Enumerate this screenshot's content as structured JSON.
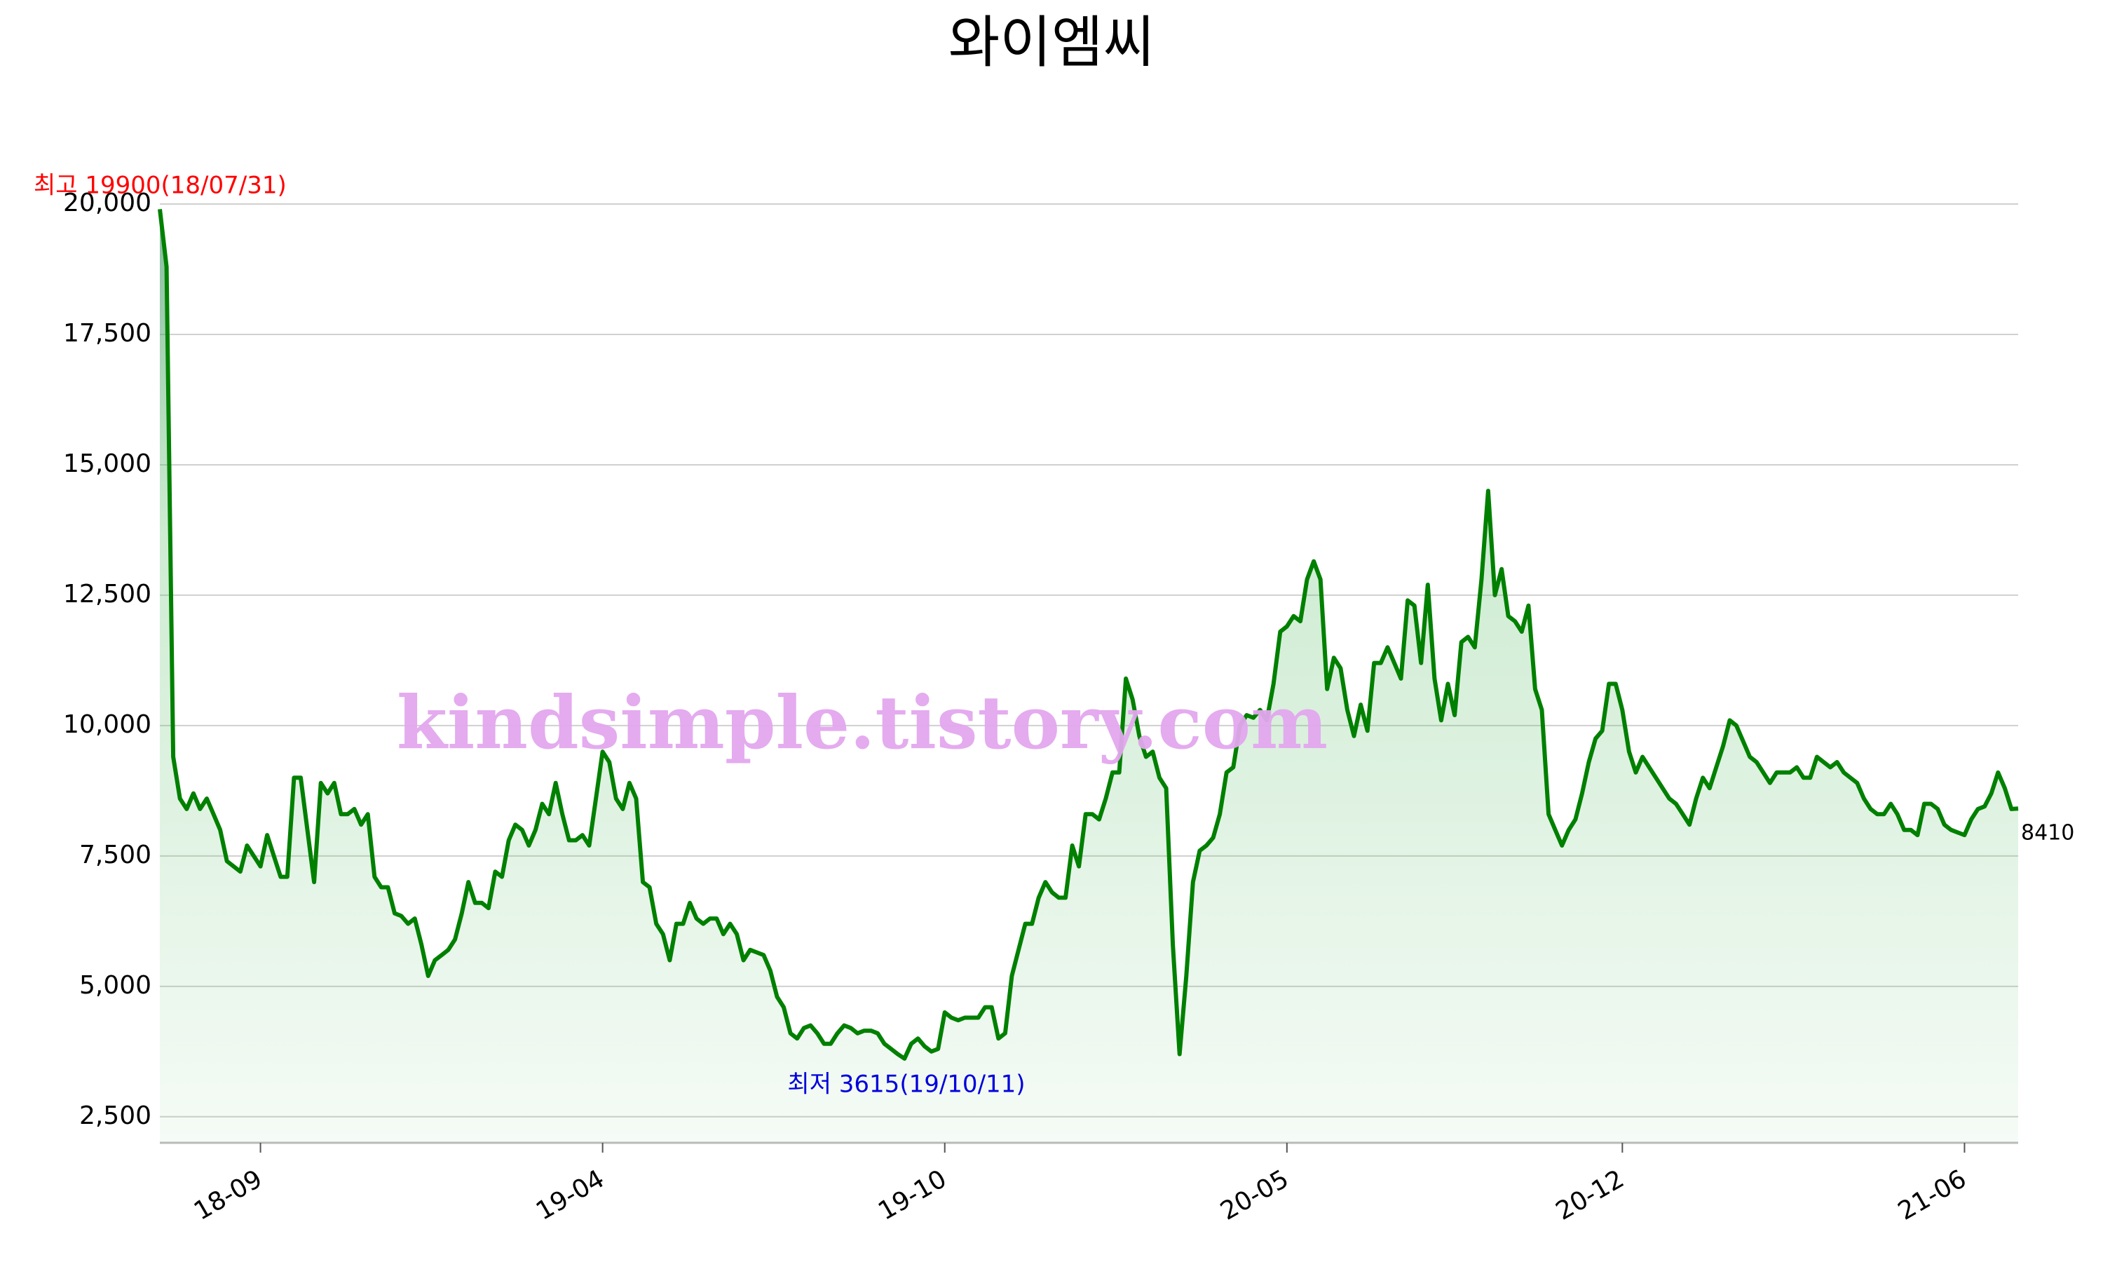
{
  "chart_data": {
    "type": "area-line",
    "title": "와이엠씨",
    "watermark": "kindsimple.tistory.com",
    "annotations": {
      "max": "최고 19900(18/07/31)",
      "min": "최저 3615(19/10/11)"
    },
    "color": "#008000",
    "categories": [
      null,
      null,
      null,
      null,
      null,
      null,
      null,
      null,
      null,
      null,
      null,
      null,
      null,
      null,
      null,
      "18-09",
      null,
      null,
      null,
      null,
      null,
      null,
      null,
      null,
      null,
      null,
      null,
      null,
      null,
      null,
      null,
      null,
      null,
      null,
      null,
      null,
      null,
      null,
      null,
      null,
      null,
      null,
      null,
      null,
      null,
      null,
      null,
      null,
      null,
      null,
      null,
      null,
      null,
      null,
      null,
      null,
      null,
      null,
      null,
      null,
      null,
      null,
      null,
      null,
      null,
      null,
      "19-04",
      null,
      null,
      null,
      null,
      null,
      null,
      null,
      null,
      null,
      null,
      null,
      null,
      null,
      null,
      null,
      null,
      null,
      null,
      null,
      null,
      null,
      null,
      null,
      null,
      null,
      null,
      null,
      null,
      null,
      null,
      null,
      null,
      null,
      null,
      null,
      null,
      null,
      null,
      null,
      null,
      null,
      null,
      null,
      null,
      null,
      null,
      null,
      null,
      null,
      null,
      "19-10",
      null,
      null,
      null,
      null,
      null,
      null,
      null,
      null,
      null,
      null,
      null,
      null,
      null,
      null,
      null,
      null,
      null,
      null,
      null,
      null,
      null,
      null,
      null,
      null,
      null,
      null,
      null,
      null,
      null,
      null,
      null,
      null,
      null,
      null,
      null,
      null,
      null,
      null,
      null,
      null,
      null,
      null,
      null,
      null,
      null,
      null,
      null,
      null,
      null,
      null,
      "20-05",
      null,
      null,
      null,
      null,
      null,
      null,
      null,
      null,
      null,
      null,
      null,
      null,
      null,
      null,
      null,
      null,
      null,
      null,
      null,
      null,
      null,
      null,
      null,
      null,
      null,
      null,
      null,
      null,
      null,
      null,
      null,
      null,
      null,
      null,
      null,
      null,
      null,
      null,
      null,
      null,
      null,
      null,
      null,
      null,
      null,
      null,
      null,
      null,
      null,
      "20-12",
      null,
      null,
      null,
      null,
      null,
      null,
      null,
      null,
      null,
      null,
      null,
      null,
      null,
      null,
      null,
      null,
      null,
      null,
      null,
      null,
      null,
      null,
      null,
      null,
      null,
      null,
      null,
      null,
      null,
      null,
      null,
      null,
      null,
      null,
      null,
      null,
      null,
      null,
      null,
      null,
      null,
      null,
      null,
      null,
      null,
      null,
      null,
      null,
      null,
      null,
      "21-06",
      null,
      null,
      null,
      null,
      null,
      null,
      null,
      null
    ],
    "values": [
      19900,
      18800,
      9400,
      8600,
      8400,
      8700,
      8400,
      8600,
      8300,
      8000,
      7400,
      7300,
      7200,
      7700,
      7500,
      7300,
      7900,
      7500,
      7100,
      7100,
      9000,
      9000,
      8000,
      7000,
      8900,
      8700,
      8900,
      8300,
      8300,
      8400,
      8100,
      8300,
      7100,
      6900,
      6900,
      6400,
      6350,
      6200,
      6300,
      5800,
      5200,
      5500,
      5600,
      5700,
      5900,
      6400,
      7000,
      6600,
      6600,
      6500,
      7200,
      7100,
      7800,
      8100,
      8000,
      7700,
      8000,
      8500,
      8300,
      8900,
      8300,
      7800,
      7800,
      7900,
      7700,
      8600,
      9500,
      9300,
      8600,
      8400,
      8900,
      8600,
      7000,
      6900,
      6200,
      6000,
      5500,
      6200,
      6200,
      6600,
      6300,
      6200,
      6300,
      6300,
      6000,
      6200,
      6000,
      5500,
      5700,
      5650,
      5600,
      5300,
      4800,
      4600,
      4100,
      4000,
      4200,
      4250,
      4100,
      3900,
      3900,
      4100,
      4250,
      4200,
      4100,
      4150,
      4150,
      4100,
      3900,
      3800,
      3700,
      3615,
      3900,
      4000,
      3850,
      3750,
      3800,
      4500,
      4400,
      4350,
      4400,
      4400,
      4400,
      4600,
      4600,
      4000,
      4100,
      5200,
      5700,
      6200,
      6200,
      6700,
      7000,
      6800,
      6700,
      6700,
      7700,
      7300,
      8300,
      8300,
      8200,
      8600,
      9100,
      9100,
      10900,
      10500,
      9800,
      9400,
      9500,
      9000,
      8800,
      5800,
      3700,
      5200,
      7000,
      7600,
      7700,
      7850,
      8300,
      9100,
      9200,
      10000,
      10200,
      10150,
      10300,
      10100,
      10800,
      11800,
      11900,
      12100,
      12000,
      12800,
      13150,
      12800,
      10700,
      11300,
      11100,
      10300,
      9800,
      10400,
      9900,
      11200,
      11200,
      11500,
      11200,
      10900,
      12400,
      12300,
      11200,
      12700,
      10900,
      10100,
      10800,
      10200,
      11600,
      11700,
      11500,
      12800,
      14500,
      12500,
      13000,
      12100,
      12000,
      11800,
      12300,
      10700,
      10300,
      8300,
      8000,
      7700,
      8000,
      8200,
      8700,
      9300,
      9750,
      9900,
      10800,
      10800,
      10300,
      9500,
      9100,
      9400,
      9200,
      9000,
      8800,
      8600,
      8500,
      8300,
      8100,
      8600,
      9000,
      8800,
      9200,
      9600,
      10100,
      10000,
      9700,
      9400,
      9300,
      9100,
      8900,
      9100,
      9100,
      9100,
      9200,
      9000,
      9000,
      9400,
      9300,
      9200,
      9300,
      9100,
      9000,
      8900,
      8600,
      8400,
      8300,
      8300,
      8500,
      8300,
      8000,
      8000,
      7900,
      8500,
      8500,
      8400,
      8100,
      8000,
      7950,
      7900,
      8200,
      8400,
      8450,
      8700,
      9100,
      8800,
      8400,
      8410
    ],
    "ylim": [
      2000,
      20000
    ],
    "yticks": [
      {
        "value": 2500,
        "label": "2,500"
      },
      {
        "value": 5000,
        "label": "5,000"
      },
      {
        "value": 7500,
        "label": "7,500"
      },
      {
        "value": 10000,
        "label": "10,000"
      },
      {
        "value": 12500,
        "label": "12,500"
      },
      {
        "value": 15000,
        "label": "15,000"
      },
      {
        "value": 17500,
        "label": "17,500"
      },
      {
        "value": 20000,
        "label": "20,000"
      }
    ],
    "grid": true
  }
}
